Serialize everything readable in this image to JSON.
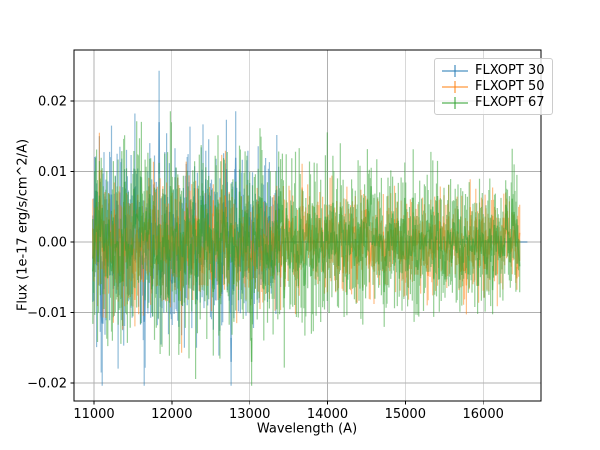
{
  "figure": {
    "background": "#ffffff",
    "plot_background": "#ffffff"
  },
  "chart_data": {
    "type": "line",
    "subtype": "errorbar-spectrum",
    "title": "",
    "xlabel": "Wavelength (A)",
    "ylabel": "Flux (1e-17 erg/s/cm^2/A)",
    "xlim": [
      10743,
      16743
    ],
    "ylim": [
      -0.02255,
      0.02723
    ],
    "x_ticks": [
      11000,
      12000,
      13000,
      14000,
      15000,
      16000
    ],
    "x_tick_labels": [
      "11000",
      "12000",
      "13000",
      "14000",
      "15000",
      "16000"
    ],
    "y_ticks": [
      -0.02,
      -0.01,
      0,
      0.01,
      0.02
    ],
    "y_tick_labels": [
      "−0.02",
      "−0.01",
      "0.00",
      "0.01",
      "0.02"
    ],
    "grid": true,
    "legend_position": "upper right",
    "alpha": 0.5,
    "line_width": 1.5,
    "errorbar_width": 1.2,
    "random_seed": 20,
    "step_angstrom": 12,
    "colors": {
      "grid": "#b0b0b0",
      "spine": "#000000",
      "tick": "#000000",
      "text": "#000000",
      "legend_border": "#cccccc"
    },
    "series": [
      {
        "name": "FLXOPT 30",
        "color": "#1f77b4",
        "x_start": 10985,
        "x_end": 16570,
        "noise_end": 13400,
        "flat_after_noise": true,
        "value_sigma_start": 0.0042,
        "value_sigma_end": 0.0032,
        "err_mean_start": 0.008,
        "err_mean_end": 0.0058,
        "spike_chance": 0.03,
        "spike_scale": 2.3
      },
      {
        "name": "FLXOPT 50",
        "color": "#ff7f0e",
        "x_start": 10985,
        "x_end": 16480,
        "noise_end": 16480,
        "flat_after_noise": false,
        "value_sigma_start": 0.0028,
        "value_sigma_end": 0.002,
        "err_mean_start": 0.0048,
        "err_mean_end": 0.0034,
        "spike_chance": 0.02,
        "spike_scale": 1.9
      },
      {
        "name": "FLXOPT 67",
        "color": "#2ca02c",
        "x_start": 10985,
        "x_end": 16480,
        "noise_end": 16480,
        "flat_after_noise": false,
        "value_sigma_start": 0.004,
        "value_sigma_end": 0.0026,
        "err_mean_start": 0.0078,
        "err_mean_end": 0.0046,
        "spike_chance": 0.025,
        "spike_scale": 2.0
      }
    ]
  }
}
